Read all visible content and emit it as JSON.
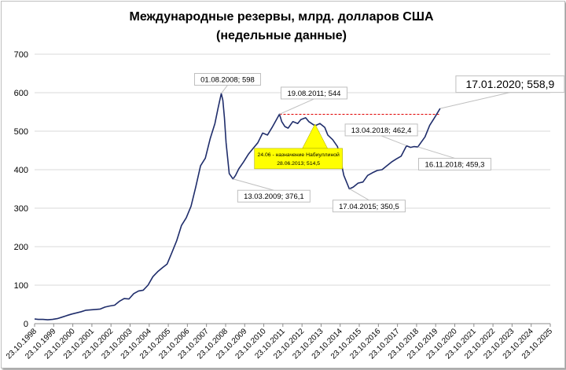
{
  "chart_data": {
    "type": "line",
    "title": "Международные резервы, млрд. долларов США",
    "subtitle": "(недельные данные)",
    "xlabel": "",
    "ylabel": "",
    "ylim": [
      0,
      700
    ],
    "yticks": [
      0,
      100,
      200,
      300,
      400,
      500,
      600,
      700
    ],
    "xlim": [
      "1998-10-23",
      "2025-10-23"
    ],
    "xtick_labels": [
      "23.10.1998",
      "23.10.1999",
      "23.10.2000",
      "23.10.2001",
      "23.10.2002",
      "23.10.2003",
      "23.10.2004",
      "23.10.2005",
      "23.10.2006",
      "23.10.2007",
      "23.10.2008",
      "23.10.2009",
      "23.10.2010",
      "23.10.2011",
      "23.10.2012",
      "23.10.2013",
      "23.10.2014",
      "23.10.2015",
      "23.10.2016",
      "23.10.2017",
      "23.10.2018",
      "23.10.2019",
      "23.10.2020",
      "23.10.2021",
      "23.10.2022",
      "23.10.2023",
      "23.10.2024",
      "23.10.2025"
    ],
    "grid": true,
    "line_color": "#1f2d6b",
    "reference_line": {
      "value": 544,
      "from": "2011-08-19",
      "to": "2020-01-17",
      "color": "#e00000"
    },
    "series": [
      {
        "points": [
          [
            "1998-10-23",
            12
          ],
          [
            "1999-01-01",
            11
          ],
          [
            "1999-04-01",
            11
          ],
          [
            "1999-07-01",
            10
          ],
          [
            "1999-10-01",
            11
          ],
          [
            "2000-01-01",
            13
          ],
          [
            "2000-04-01",
            17
          ],
          [
            "2000-07-01",
            21
          ],
          [
            "2000-10-01",
            25
          ],
          [
            "2001-01-01",
            28
          ],
          [
            "2001-04-01",
            31
          ],
          [
            "2001-07-01",
            35
          ],
          [
            "2001-10-01",
            36
          ],
          [
            "2002-01-01",
            37
          ],
          [
            "2002-04-01",
            38
          ],
          [
            "2002-07-01",
            43
          ],
          [
            "2002-10-01",
            46
          ],
          [
            "2003-01-01",
            48
          ],
          [
            "2003-04-01",
            58
          ],
          [
            "2003-07-01",
            65
          ],
          [
            "2003-10-01",
            64
          ],
          [
            "2004-01-01",
            78
          ],
          [
            "2004-04-01",
            85
          ],
          [
            "2004-07-01",
            87
          ],
          [
            "2004-10-01",
            100
          ],
          [
            "2005-01-01",
            122
          ],
          [
            "2005-04-01",
            135
          ],
          [
            "2005-07-01",
            145
          ],
          [
            "2005-10-01",
            155
          ],
          [
            "2006-01-01",
            185
          ],
          [
            "2006-04-01",
            215
          ],
          [
            "2006-07-01",
            255
          ],
          [
            "2006-10-01",
            275
          ],
          [
            "2007-01-01",
            305
          ],
          [
            "2007-04-01",
            355
          ],
          [
            "2007-07-01",
            410
          ],
          [
            "2007-10-01",
            430
          ],
          [
            "2008-01-01",
            480
          ],
          [
            "2008-04-01",
            520
          ],
          [
            "2008-06-01",
            560
          ],
          [
            "2008-08-01",
            598
          ],
          [
            "2008-09-01",
            580
          ],
          [
            "2008-10-01",
            535
          ],
          [
            "2008-11-01",
            470
          ],
          [
            "2008-12-01",
            430
          ],
          [
            "2009-01-01",
            390
          ],
          [
            "2009-03-13",
            376
          ],
          [
            "2009-05-01",
            385
          ],
          [
            "2009-07-01",
            402
          ],
          [
            "2009-10-01",
            420
          ],
          [
            "2010-01-01",
            440
          ],
          [
            "2010-04-01",
            455
          ],
          [
            "2010-07-01",
            470
          ],
          [
            "2010-10-01",
            495
          ],
          [
            "2011-01-01",
            490
          ],
          [
            "2011-04-01",
            510
          ],
          [
            "2011-08-19",
            544
          ],
          [
            "2011-10-01",
            525
          ],
          [
            "2011-12-01",
            512
          ],
          [
            "2012-02-01",
            508
          ],
          [
            "2012-05-01",
            525
          ],
          [
            "2012-08-01",
            520
          ],
          [
            "2012-10-01",
            530
          ],
          [
            "2013-01-01",
            535
          ],
          [
            "2013-03-01",
            525
          ],
          [
            "2013-06-28",
            514
          ],
          [
            "2013-10-01",
            520
          ],
          [
            "2014-01-01",
            510
          ],
          [
            "2014-03-01",
            490
          ],
          [
            "2014-06-01",
            478
          ],
          [
            "2014-09-01",
            460
          ],
          [
            "2014-11-01",
            425
          ],
          [
            "2015-01-01",
            385
          ],
          [
            "2015-04-17",
            350
          ],
          [
            "2015-07-01",
            355
          ],
          [
            "2015-10-01",
            365
          ],
          [
            "2016-01-01",
            368
          ],
          [
            "2016-04-01",
            385
          ],
          [
            "2016-07-01",
            392
          ],
          [
            "2016-10-01",
            398
          ],
          [
            "2017-01-01",
            400
          ],
          [
            "2017-04-01",
            410
          ],
          [
            "2017-07-01",
            420
          ],
          [
            "2017-10-01",
            428
          ],
          [
            "2018-01-01",
            435
          ],
          [
            "2018-04-13",
            462
          ],
          [
            "2018-07-01",
            458
          ],
          [
            "2018-09-01",
            460
          ],
          [
            "2018-11-16",
            459
          ],
          [
            "2019-01-01",
            468
          ],
          [
            "2019-04-01",
            485
          ],
          [
            "2019-07-01",
            515
          ],
          [
            "2019-10-01",
            535
          ],
          [
            "2020-01-17",
            559
          ]
        ]
      }
    ],
    "annotations": [
      {
        "text": "01.08.2008; 598",
        "x": "2008-08-01",
        "y": 598
      },
      {
        "text": "19.08.2011; 544",
        "x": "2011-08-19",
        "y": 544
      },
      {
        "text": "13.03.2009; 376,1",
        "x": "2009-03-13",
        "y": 376.1
      },
      {
        "text": "17.04.2015; 350,5",
        "x": "2015-04-17",
        "y": 350.5
      },
      {
        "text": "13.04.2018; 462,4",
        "x": "2018-04-13",
        "y": 462.4
      },
      {
        "text": "16.11.2018; 459,3",
        "x": "2018-11-16",
        "y": 459.3
      },
      {
        "text": "17.01.2020; 558,9",
        "x": "2020-01-17",
        "y": 558.9
      }
    ],
    "callout": {
      "line1": "24.06 - назначение Набиуллиной",
      "line2": "28.06.2013; 514,5",
      "x": "2013-06-28",
      "y": 514.5,
      "color": "#ffff00"
    }
  }
}
